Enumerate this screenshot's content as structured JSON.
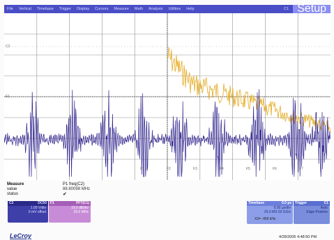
{
  "menu": {
    "items": [
      "File",
      "Vertical",
      "Timebase",
      "Trigger",
      "Display",
      "Cursors",
      "Measure",
      "Math",
      "Analysis",
      "Utilities",
      "Help"
    ],
    "channel": "C1",
    "setup": "Setup"
  },
  "colors": {
    "menu_bg": "#4a4ec6",
    "trace_c2": "#2a1f8a",
    "trace_f1": "#e4a91e",
    "grid": "#8f8f8f"
  },
  "scope": {
    "level_markers": [
      "C2",
      "F1"
    ],
    "pane_labels": [
      "F1",
      "F2",
      "F3",
      "F4",
      "F5",
      "F6",
      "F7"
    ]
  },
  "measure": {
    "title": "Measure",
    "param": "P1 freq(C2)",
    "value_label": "value",
    "value": "88.80098 MHz",
    "status_label": "status",
    "status_icon": "check-icon"
  },
  "c2": {
    "name": "C2",
    "mode": "DC50",
    "line1": "1.00 V/div",
    "line2": "0 mV offset"
  },
  "f1": {
    "name": "F1",
    "func": "FFT(C1)",
    "line1": "10.0 dB/div",
    "line2": "25.0 MHz"
  },
  "timebase": {
    "name": "Timebase",
    "value": "0.0 µs",
    "line1": "5.00 µs/div",
    "line2": "25.0 MS  50 GS/s"
  },
  "trigger": {
    "name": "Trigger",
    "value": "C1",
    "line1": "Auto",
    "line2": "Edge  Positive"
  },
  "cursor": {
    "readout": "X3= -459 kHz"
  },
  "brand": "LeCroy",
  "datetime": "4/28/2005 4:48:50 PM"
}
